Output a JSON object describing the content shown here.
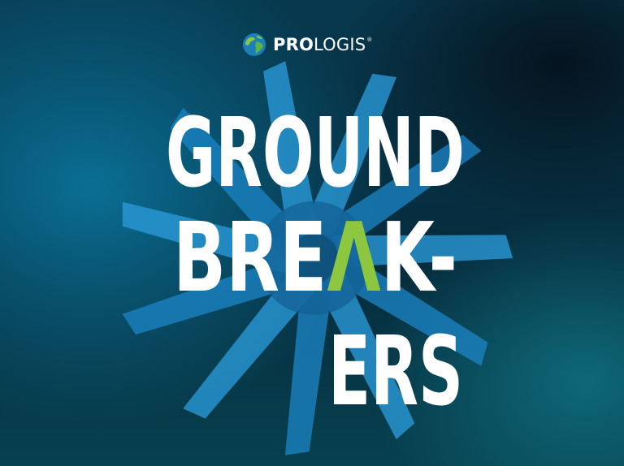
{
  "logo": {
    "brand_bold": "PRO",
    "brand_light": "LOGIS",
    "registered": "®",
    "icon": "globe-icon"
  },
  "title": {
    "line1": "GROUND",
    "line2": "BREAK-",
    "line3": "ERS",
    "accent_letter": "A"
  },
  "colors": {
    "text": "#ffffff",
    "accent_green": "#8dc63f",
    "star_blue": "#1e88c8",
    "star_light": "#3aa7e0",
    "background_dark": "#062c3d"
  }
}
